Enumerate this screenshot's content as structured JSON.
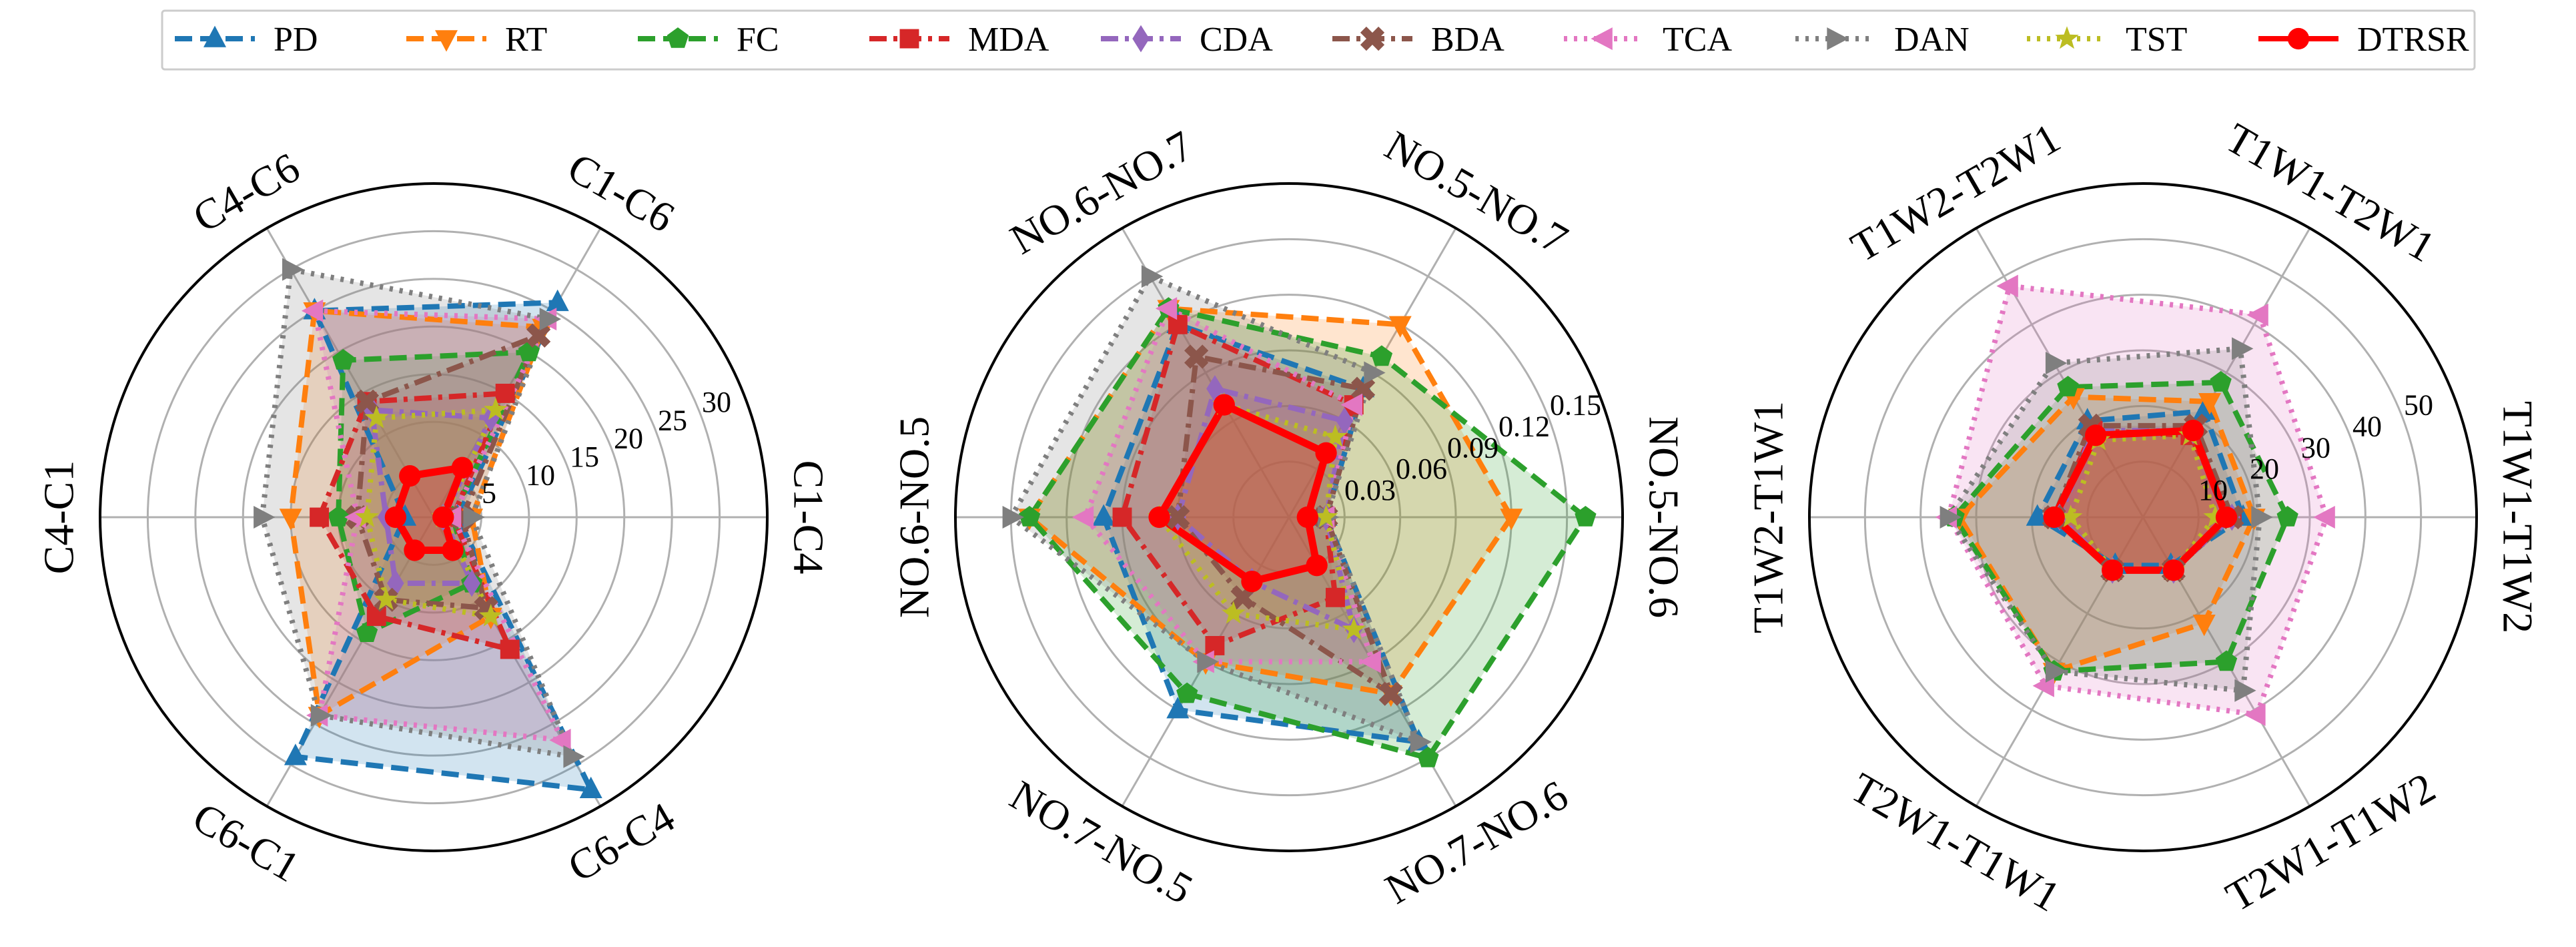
{
  "legend": [
    {
      "name": "PD",
      "color": "#1f77b4",
      "marker": "triangle-up",
      "dash": "dashed"
    },
    {
      "name": "RT",
      "color": "#ff7f0e",
      "marker": "triangle-down",
      "dash": "dashed"
    },
    {
      "name": "FC",
      "color": "#2ca02c",
      "marker": "pentagon",
      "dash": "dashed"
    },
    {
      "name": "MDA",
      "color": "#d62728",
      "marker": "square",
      "dash": "dashdot"
    },
    {
      "name": "CDA",
      "color": "#9467bd",
      "marker": "diamond",
      "dash": "dashdot"
    },
    {
      "name": "BDA",
      "color": "#8c564b",
      "marker": "x",
      "dash": "dashdot"
    },
    {
      "name": "TCA",
      "color": "#e377c2",
      "marker": "triangle-left",
      "dash": "dotted"
    },
    {
      "name": "DAN",
      "color": "#7f7f7f",
      "marker": "triangle-right",
      "dash": "dotted"
    },
    {
      "name": "TST",
      "color": "#bcbd22",
      "marker": "star",
      "dash": "dotted"
    },
    {
      "name": "DTRSR",
      "color": "#ff0000",
      "marker": "circle",
      "dash": "solid"
    }
  ],
  "chart_data": [
    {
      "type": "radar",
      "categories": [
        "C1-C4",
        "C1-C6",
        "C4-C6",
        "C4-C1",
        "C6-C1",
        "C6-C4"
      ],
      "ticks": [
        5,
        10,
        15,
        20,
        25,
        30
      ],
      "tick_labels": [
        "5",
        "10",
        "15",
        "20",
        "25",
        "30"
      ],
      "rmax": 35,
      "series": [
        {
          "name": "PD",
          "values": [
            2.5,
            26,
            25,
            3,
            29,
            33
          ]
        },
        {
          "name": "RT",
          "values": [
            4,
            23,
            25,
            15,
            24,
            12
          ]
        },
        {
          "name": "FC",
          "values": [
            2,
            20,
            19,
            10,
            14,
            8
          ]
        },
        {
          "name": "MDA",
          "values": [
            2,
            15,
            14,
            12,
            12,
            16
          ]
        },
        {
          "name": "CDA",
          "values": [
            1,
            12,
            13,
            5,
            8,
            8
          ]
        },
        {
          "name": "BDA",
          "values": [
            3,
            22,
            14,
            8,
            10,
            11
          ]
        },
        {
          "name": "TCA",
          "values": [
            2,
            24,
            25,
            8,
            24,
            27
          ]
        },
        {
          "name": "DAN",
          "values": [
            4,
            24,
            30,
            18,
            24,
            29
          ]
        },
        {
          "name": "TST",
          "values": [
            1,
            13,
            12,
            7,
            10,
            12
          ]
        },
        {
          "name": "DTRSR",
          "values": [
            1,
            6,
            5,
            4,
            4,
            4
          ]
        }
      ]
    },
    {
      "type": "radar",
      "categories": [
        "NO.5-NO.6",
        "NO.5-NO.7",
        "NO.6-NO.7",
        "NO.6-NO.5",
        "NO.7-NO.5",
        "NO.7-NO.6"
      ],
      "ticks": [
        0.03,
        0.06,
        0.09,
        0.12,
        0.15
      ],
      "tick_labels": [
        "0.03",
        "0.06",
        "0.09",
        "0.12",
        "0.15"
      ],
      "rmax": 0.18,
      "series": [
        {
          "name": "PD",
          "values": [
            0.02,
            0.08,
            0.12,
            0.1,
            0.12,
            0.14
          ]
        },
        {
          "name": "RT",
          "values": [
            0.12,
            0.12,
            0.13,
            0.14,
            0.09,
            0.11
          ]
        },
        {
          "name": "FC",
          "values": [
            0.16,
            0.1,
            0.13,
            0.14,
            0.11,
            0.15
          ]
        },
        {
          "name": "MDA",
          "values": [
            0.02,
            0.07,
            0.12,
            0.09,
            0.08,
            0.05
          ]
        },
        {
          "name": "CDA",
          "values": [
            0.02,
            0.06,
            0.08,
            0.06,
            0.04,
            0.07
          ]
        },
        {
          "name": "BDA",
          "values": [
            0.02,
            0.08,
            0.1,
            0.06,
            0.05,
            0.11
          ]
        },
        {
          "name": "TCA",
          "values": [
            0.02,
            0.07,
            0.13,
            0.11,
            0.09,
            0.09
          ]
        },
        {
          "name": "DAN",
          "values": [
            0.02,
            0.09,
            0.15,
            0.15,
            0.09,
            0.14
          ]
        },
        {
          "name": "TST",
          "values": [
            0.02,
            0.05,
            0.07,
            0.07,
            0.06,
            0.07
          ]
        },
        {
          "name": "DTRSR",
          "values": [
            0.01,
            0.04,
            0.07,
            0.07,
            0.04,
            0.03
          ]
        }
      ]
    },
    {
      "type": "radar",
      "categories": [
        "T1W1-T1W2",
        "T1W1-T2W1",
        "T1W2-T2W1",
        "T1W2-T1W1",
        "T2W1-T1W1",
        "T2W1-T1W2"
      ],
      "ticks": [
        10,
        20,
        30,
        40,
        50
      ],
      "tick_labels": [
        "10",
        "20",
        "30",
        "40",
        "50"
      ],
      "rmax": 60,
      "series": [
        {
          "name": "PD",
          "values": [
            18,
            22,
            20,
            19,
            10,
            10
          ]
        },
        {
          "name": "RT",
          "values": [
            20,
            24,
            25,
            33,
            32,
            22
          ]
        },
        {
          "name": "FC",
          "values": [
            26,
            28,
            27,
            34,
            32,
            30
          ]
        },
        {
          "name": "MDA",
          "values": [
            16,
            17,
            18,
            16,
            11,
            11
          ]
        },
        {
          "name": "CDA",
          "values": [
            16,
            18,
            18,
            15,
            11,
            11
          ]
        },
        {
          "name": "BDA",
          "values": [
            16,
            19,
            19,
            16,
            11,
            11
          ]
        },
        {
          "name": "TCA",
          "values": [
            33,
            42,
            48,
            35,
            35,
            41
          ]
        },
        {
          "name": "DAN",
          "values": [
            21,
            35,
            32,
            35,
            32,
            36
          ]
        },
        {
          "name": "TST",
          "values": [
            13,
            17,
            16,
            13,
            11,
            11
          ]
        },
        {
          "name": "DTRSR",
          "values": [
            15,
            18,
            17,
            16,
            11,
            11
          ]
        }
      ]
    }
  ]
}
